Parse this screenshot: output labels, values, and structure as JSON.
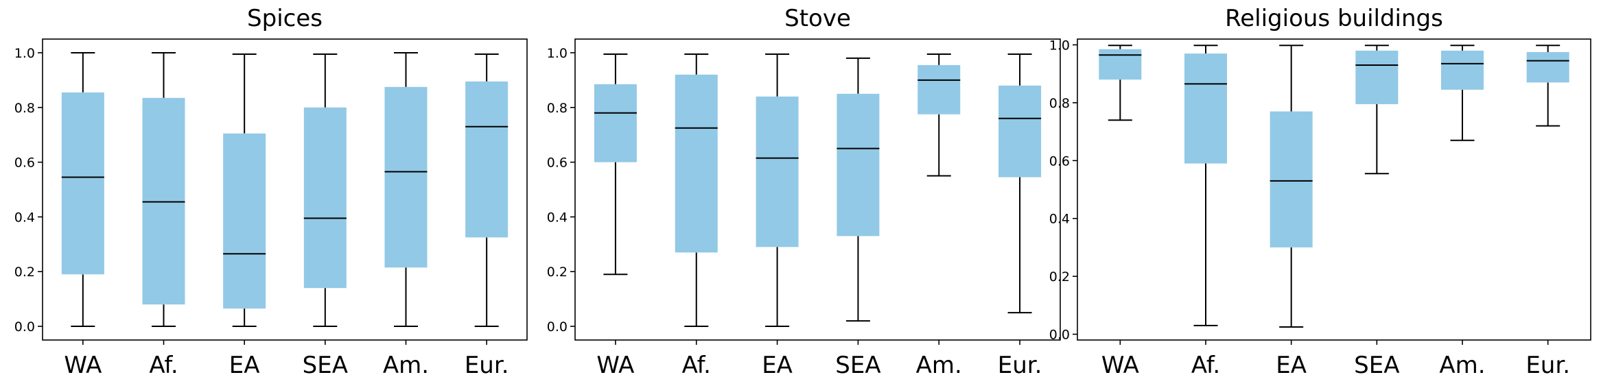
{
  "chart_data": [
    {
      "type": "box",
      "title": "Spices",
      "categories": [
        "WA",
        "Af.",
        "EA",
        "SEA",
        "Am.",
        "Eur."
      ],
      "ylim": [
        -0.05,
        1.05
      ],
      "yticks": [
        "0.0",
        "0.2",
        "0.4",
        "0.6",
        "0.8",
        "1.0"
      ],
      "box_color": "#92c9e6",
      "series": [
        {
          "name": "WA",
          "min": 0.0,
          "q1": 0.19,
          "median": 0.545,
          "q3": 0.855,
          "max": 1.0
        },
        {
          "name": "Af.",
          "min": 0.0,
          "q1": 0.08,
          "median": 0.455,
          "q3": 0.835,
          "max": 1.0
        },
        {
          "name": "EA",
          "min": 0.0,
          "q1": 0.065,
          "median": 0.265,
          "q3": 0.705,
          "max": 0.995
        },
        {
          "name": "SEA",
          "min": 0.0,
          "q1": 0.14,
          "median": 0.395,
          "q3": 0.8,
          "max": 0.995
        },
        {
          "name": "Am.",
          "min": 0.0,
          "q1": 0.215,
          "median": 0.565,
          "q3": 0.875,
          "max": 1.0
        },
        {
          "name": "Eur.",
          "min": 0.0,
          "q1": 0.325,
          "median": 0.73,
          "q3": 0.895,
          "max": 0.995
        }
      ]
    },
    {
      "type": "box",
      "title": "Stove",
      "categories": [
        "WA",
        "Af.",
        "EA",
        "SEA",
        "Am.",
        "Eur."
      ],
      "ylim": [
        -0.05,
        1.05
      ],
      "yticks": [
        "0.0",
        "0.2",
        "0.4",
        "0.6",
        "0.8",
        "1.0"
      ],
      "box_color": "#92c9e6",
      "series": [
        {
          "name": "WA",
          "min": 0.19,
          "q1": 0.6,
          "median": 0.78,
          "q3": 0.885,
          "max": 0.995
        },
        {
          "name": "Af.",
          "min": 0.0,
          "q1": 0.27,
          "median": 0.725,
          "q3": 0.92,
          "max": 0.995
        },
        {
          "name": "EA",
          "min": 0.0,
          "q1": 0.29,
          "median": 0.615,
          "q3": 0.84,
          "max": 0.995
        },
        {
          "name": "SEA",
          "min": 0.02,
          "q1": 0.33,
          "median": 0.65,
          "q3": 0.85,
          "max": 0.98
        },
        {
          "name": "Am.",
          "min": 0.55,
          "q1": 0.775,
          "median": 0.9,
          "q3": 0.955,
          "max": 0.995
        },
        {
          "name": "Eur.",
          "min": 0.05,
          "q1": 0.545,
          "median": 0.76,
          "q3": 0.88,
          "max": 0.995
        }
      ]
    },
    {
      "type": "box",
      "title": "Religious buildings",
      "categories": [
        "WA",
        "Af.",
        "EA",
        "SEA",
        "Am.",
        "Eur."
      ],
      "ylim": [
        -0.02,
        1.02
      ],
      "yticks": [
        "0.0",
        "0.2",
        "0.4",
        "0.6",
        "0.8",
        "1.0"
      ],
      "box_color": "#92c9e6",
      "series": [
        {
          "name": "WA",
          "min": 0.74,
          "q1": 0.88,
          "median": 0.965,
          "q3": 0.985,
          "max": 0.998
        },
        {
          "name": "Af.",
          "min": 0.03,
          "q1": 0.59,
          "median": 0.865,
          "q3": 0.97,
          "max": 0.998
        },
        {
          "name": "EA",
          "min": 0.025,
          "q1": 0.3,
          "median": 0.53,
          "q3": 0.77,
          "max": 0.998
        },
        {
          "name": "SEA",
          "min": 0.555,
          "q1": 0.795,
          "median": 0.93,
          "q3": 0.98,
          "max": 0.998
        },
        {
          "name": "Am.",
          "min": 0.67,
          "q1": 0.845,
          "median": 0.935,
          "q3": 0.98,
          "max": 0.998
        },
        {
          "name": "Eur.",
          "min": 0.72,
          "q1": 0.87,
          "median": 0.945,
          "q3": 0.975,
          "max": 0.998
        }
      ]
    }
  ]
}
